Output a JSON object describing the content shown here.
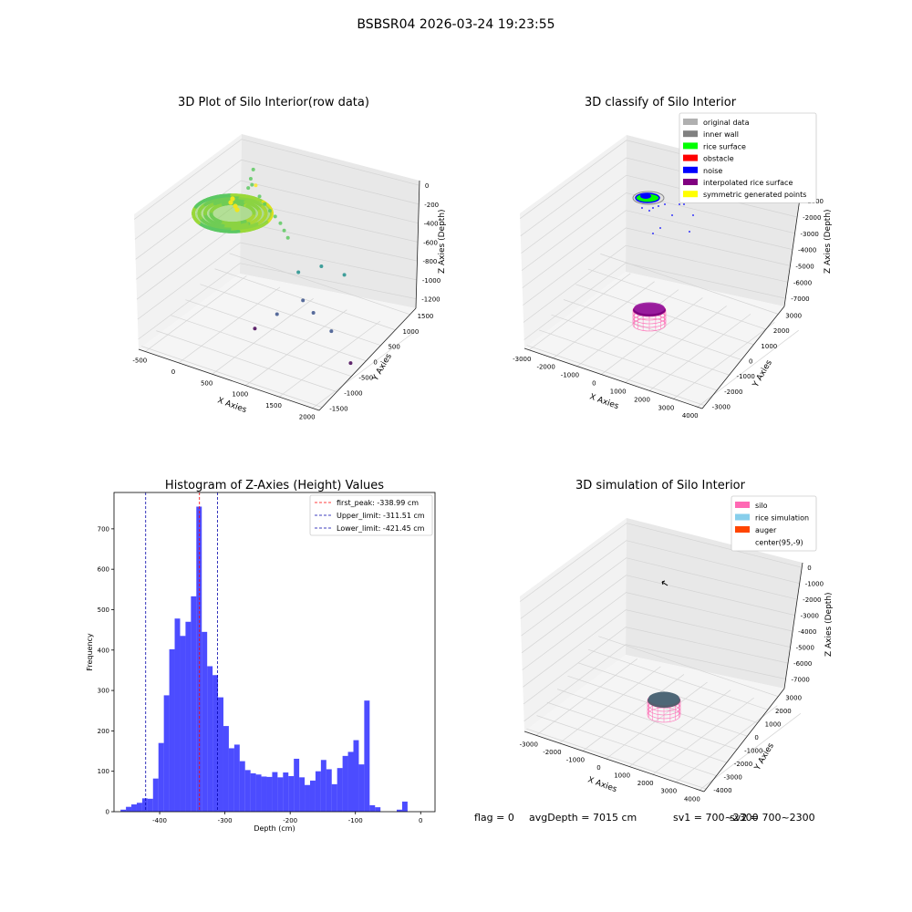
{
  "figure": {
    "title": "BSBSR04 2026-03-24 19:23:55",
    "status": {
      "flag": "flag = 0",
      "avg_depth": "avgDepth = 7015 cm",
      "sv1": "sv1 = 700~2300",
      "sv2": "sv2 = 700~2300"
    }
  },
  "chart_data": [
    {
      "type": "scatter3d",
      "title": "3D Plot of Silo Interior(row data)",
      "xlabel": "X Axies",
      "ylabel": "Y Axies",
      "zlabel": "Z Axies (Depth)",
      "x_ticks": [
        -500,
        0,
        500,
        1000,
        1500,
        2000
      ],
      "y_ticks": [
        -1500,
        -1000,
        -500,
        0,
        500,
        1000,
        1500
      ],
      "z_ticks": [
        0,
        -200,
        -400,
        -600,
        -800,
        -1000,
        -1200
      ],
      "xlim": [
        -600,
        2100
      ],
      "ylim": [
        -1600,
        1700
      ],
      "zlim": [
        -1300,
        50
      ],
      "grid": true,
      "colormap": "viridis (by depth)",
      "points": [
        {
          "x": -200,
          "y": 1400,
          "z": -300
        },
        {
          "x": -150,
          "y": 1200,
          "z": -320
        },
        {
          "x": -100,
          "y": 1000,
          "z": -340
        },
        {
          "x": 0,
          "y": 900,
          "z": -250
        },
        {
          "x": 100,
          "y": 800,
          "z": -200
        },
        {
          "x": 200,
          "y": 700,
          "z": -260
        },
        {
          "x": 300,
          "y": 650,
          "z": -300
        },
        {
          "x": 400,
          "y": 600,
          "z": -330
        },
        {
          "x": 500,
          "y": 550,
          "z": -350
        },
        {
          "x": 600,
          "y": 500,
          "z": -380
        },
        {
          "x": 700,
          "y": 400,
          "z": -400
        },
        {
          "x": 800,
          "y": 300,
          "z": -420
        },
        {
          "x": 1300,
          "y": 300,
          "z": -600
        },
        {
          "x": 1600,
          "y": 400,
          "z": -650
        },
        {
          "x": 1000,
          "y": 200,
          "z": -700
        },
        {
          "x": 1200,
          "y": -100,
          "z": -850
        },
        {
          "x": 1400,
          "y": -200,
          "z": -900
        },
        {
          "x": 900,
          "y": -300,
          "z": -1000
        },
        {
          "x": 700,
          "y": -600,
          "z": -1100
        },
        {
          "x": 1800,
          "y": -500,
          "z": -900
        },
        {
          "x": 2000,
          "y": -300,
          "z": -1250
        }
      ]
    },
    {
      "type": "scatter3d",
      "title": "3D classify of Silo Interior",
      "xlabel": "X Axies",
      "ylabel": "Y Axies",
      "zlabel": "Z Axies (Depth)",
      "x_ticks": [
        -3000,
        -2000,
        -1000,
        0,
        1000,
        2000,
        3000,
        4000
      ],
      "y_ticks": [
        -3000,
        -2000,
        -1000,
        0,
        1000,
        2000,
        3000
      ],
      "z_ticks": [
        0,
        -1000,
        -2000,
        -3000,
        -4000,
        -5000,
        -6000,
        -7000
      ],
      "xlim": [
        -3200,
        4200
      ],
      "ylim": [
        -3200,
        3500
      ],
      "zlim": [
        -7500,
        300
      ],
      "grid": true,
      "legend_position": "top-right",
      "legend": [
        {
          "name": "original data",
          "color": "#b0b0b0"
        },
        {
          "name": "inner wall",
          "color": "#808080"
        },
        {
          "name": "rice surface",
          "color": "#00ff00"
        },
        {
          "name": "obstacle",
          "color": "#ff0000"
        },
        {
          "name": "noise",
          "color": "#0000ff"
        },
        {
          "name": "interpolated rice surface",
          "color": "#800080"
        },
        {
          "name": "symmetric generated points",
          "color": "#ffff00"
        }
      ]
    },
    {
      "type": "bar",
      "title": "Histogram of Z-Axies (Height) Values",
      "xlabel": "Depth (cm)",
      "ylabel": "Frequency",
      "bar_color": "#0000ff",
      "xlim": [
        -470,
        22
      ],
      "ylim": [
        0,
        790
      ],
      "x_ticks": [
        -400,
        -300,
        -200,
        -100,
        0
      ],
      "y_ticks": [
        0,
        100,
        200,
        300,
        400,
        500,
        600,
        700
      ],
      "bin_start": -460,
      "bin_width": 8.3,
      "values": [
        5,
        12,
        18,
        22,
        33,
        32,
        82,
        170,
        288,
        402,
        478,
        435,
        470,
        533,
        755,
        445,
        360,
        338,
        283,
        212,
        157,
        166,
        125,
        103,
        95,
        92,
        87,
        86,
        98,
        85,
        97,
        88,
        131,
        85,
        66,
        77,
        100,
        128,
        105,
        68,
        108,
        138,
        148,
        177,
        117,
        275,
        16,
        11,
        0,
        0,
        0,
        5,
        25
      ],
      "vlines": [
        {
          "label": "first_peak: -338.99 cm",
          "x": -338.99,
          "color": "#ff0000"
        },
        {
          "label": "Upper_limit: -311.51 cm",
          "x": -311.51,
          "color": "#0000aa"
        },
        {
          "label": "Lower_limit: -421.45 cm",
          "x": -421.45,
          "color": "#0000aa"
        }
      ],
      "legend_position": "top-right"
    },
    {
      "type": "scatter3d",
      "title": "3D simulation of Silo Interior",
      "xlabel": "X Axies",
      "ylabel": "Y Axies",
      "zlabel": "Z Axies (Depth)",
      "x_ticks": [
        -3000,
        -2000,
        -1000,
        0,
        1000,
        2000,
        3000,
        4000
      ],
      "y_ticks": [
        -4000,
        -3000,
        -2000,
        -1000,
        0,
        1000,
        2000,
        3000
      ],
      "z_ticks": [
        0,
        -1000,
        -2000,
        -3000,
        -4000,
        -5000,
        -6000,
        -7000
      ],
      "xlim": [
        -3500,
        4200
      ],
      "ylim": [
        -4200,
        3600
      ],
      "zlim": [
        -7600,
        300
      ],
      "grid": true,
      "legend_position": "top-right",
      "legend": [
        {
          "name": "silo",
          "color": "#ff69b4"
        },
        {
          "name": "rice simulation",
          "color": "#87ceeb"
        },
        {
          "name": "auger",
          "color": "#ff4500"
        },
        {
          "name": "center(95,-9)",
          "color": ""
        }
      ]
    }
  ]
}
